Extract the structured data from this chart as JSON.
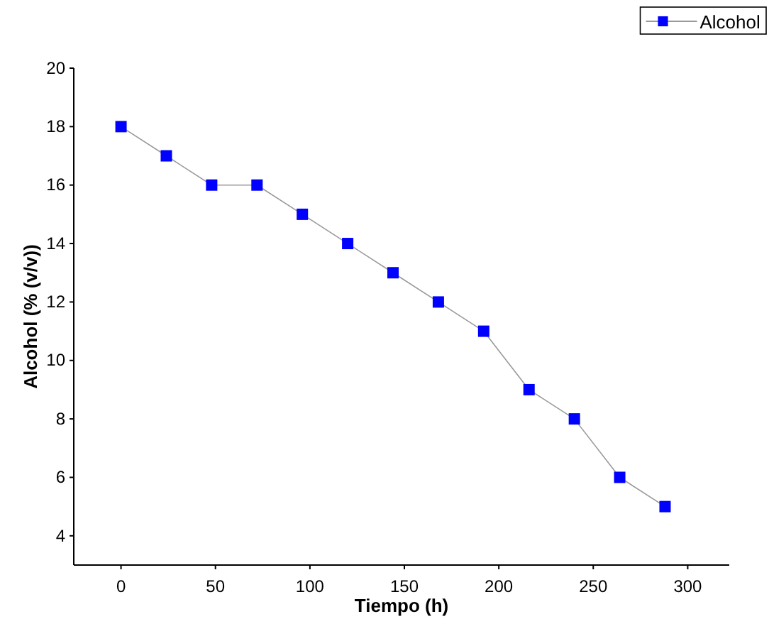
{
  "chart_data": {
    "type": "line",
    "xlabel": "Tiempo (h)",
    "ylabel": "Alcohol (% (v/v))",
    "x": [
      0,
      24,
      48,
      72,
      96,
      120,
      144,
      168,
      192,
      216,
      240,
      264,
      288
    ],
    "series": [
      {
        "name": "Alcohol",
        "color": "#0000ff",
        "values": [
          18,
          17,
          16,
          16,
          15,
          14,
          13,
          12,
          11,
          9,
          8,
          6,
          5
        ]
      }
    ],
    "xlim": [
      -25,
      322
    ],
    "xticks": [
      0,
      50,
      100,
      150,
      200,
      250,
      300
    ],
    "ylim": [
      3,
      20
    ],
    "yticks": [
      4,
      6,
      8,
      10,
      12,
      14,
      16,
      18,
      20
    ],
    "grid": false,
    "legend": "top right",
    "marker": "square",
    "line_style": "solid"
  }
}
